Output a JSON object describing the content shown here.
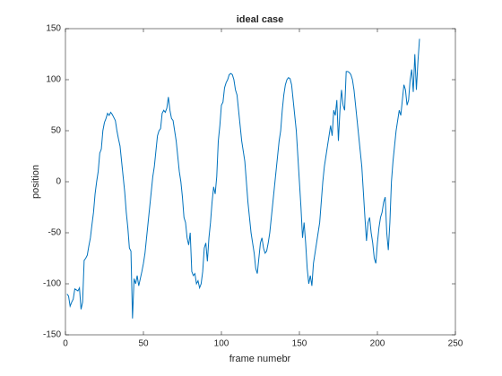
{
  "chart_data": {
    "type": "line",
    "title": "ideal case",
    "xlabel": "frame numebr",
    "ylabel": "position",
    "x": [
      1,
      2,
      3,
      4,
      5,
      6,
      7,
      8,
      9,
      10,
      11,
      12,
      13,
      14,
      15,
      16,
      17,
      18,
      19,
      20,
      21,
      22,
      23,
      24,
      25,
      26,
      27,
      28,
      29,
      30,
      31,
      32,
      33,
      34,
      35,
      36,
      37,
      38,
      39,
      40,
      41,
      42,
      43,
      44,
      45,
      46,
      47,
      48,
      49,
      50,
      51,
      52,
      53,
      54,
      55,
      56,
      57,
      58,
      59,
      60,
      61,
      62,
      63,
      64,
      65,
      66,
      67,
      68,
      69,
      70,
      71,
      72,
      73,
      74,
      75,
      76,
      77,
      78,
      79,
      80,
      81,
      82,
      83,
      84,
      85,
      86,
      87,
      88,
      89,
      90,
      91,
      92,
      93,
      94,
      95,
      96,
      97,
      98,
      99,
      100,
      101,
      102,
      103,
      104,
      105,
      106,
      107,
      108,
      109,
      110,
      111,
      112,
      113,
      114,
      115,
      116,
      117,
      118,
      119,
      120,
      121,
      122,
      123,
      124,
      125,
      126,
      127,
      128,
      129,
      130,
      131,
      132,
      133,
      134,
      135,
      136,
      137,
      138,
      139,
      140,
      141,
      142,
      143,
      144,
      145,
      146,
      147,
      148,
      149,
      150,
      151,
      152,
      153,
      154,
      155,
      156,
      157,
      158,
      159,
      160,
      161,
      162,
      163,
      164,
      165,
      166,
      167,
      168,
      169,
      170,
      171,
      172,
      173,
      174,
      175,
      176,
      177,
      178,
      179,
      180,
      181,
      182,
      183,
      184,
      185,
      186,
      187,
      188,
      189,
      190,
      191,
      192,
      193,
      194,
      195,
      196,
      197,
      198,
      199,
      200,
      201,
      202,
      203,
      204,
      205,
      206,
      207,
      208,
      209,
      210,
      211,
      212,
      213,
      214,
      215,
      216,
      217,
      218,
      219,
      220,
      221,
      222,
      223,
      224,
      225,
      226,
      227
    ],
    "series": [
      {
        "color": "#0072bd",
        "values": [
          -110,
          -112,
          -122,
          -118,
          -115,
          -105,
          -106,
          -107,
          -104,
          -125,
          -118,
          -77,
          -75,
          -72,
          -63,
          -55,
          -42,
          -30,
          -12,
          0,
          10,
          28,
          32,
          50,
          58,
          62,
          67,
          65,
          68,
          66,
          63,
          60,
          50,
          42,
          35,
          20,
          5,
          -10,
          -30,
          -45,
          -65,
          -68,
          -134,
          -95,
          -100,
          -92,
          -102,
          -95,
          -88,
          -80,
          -70,
          -55,
          -40,
          -25,
          -10,
          5,
          15,
          30,
          45,
          50,
          52,
          67,
          70,
          68,
          72,
          83,
          70,
          62,
          60,
          50,
          40,
          25,
          10,
          0,
          -15,
          -35,
          -40,
          -55,
          -62,
          -50,
          -88,
          -92,
          -90,
          -100,
          -97,
          -104,
          -100,
          -88,
          -65,
          -60,
          -78,
          -55,
          -40,
          -20,
          -5,
          -12,
          5,
          40,
          55,
          75,
          78,
          92,
          97,
          100,
          105,
          106,
          105,
          100,
          90,
          85,
          70,
          55,
          40,
          30,
          20,
          0,
          -20,
          -35,
          -50,
          -60,
          -70,
          -85,
          -90,
          -75,
          -60,
          -55,
          -65,
          -70,
          -68,
          -60,
          -50,
          -35,
          -20,
          -5,
          10,
          25,
          40,
          50,
          70,
          85,
          95,
          100,
          102,
          101,
          95,
          80,
          65,
          50,
          25,
          0,
          -25,
          -55,
          -40,
          -60,
          -85,
          -100,
          -92,
          -102,
          -80,
          -70,
          -60,
          -50,
          -40,
          -20,
          0,
          15,
          25,
          35,
          45,
          55,
          45,
          70,
          65,
          80,
          40,
          70,
          90,
          75,
          70,
          108,
          108,
          107,
          105,
          100,
          90,
          75,
          60,
          45,
          30,
          15,
          -10,
          -35,
          -58,
          -40,
          -35,
          -50,
          -60,
          -75,
          -80,
          -60,
          -45,
          -35,
          -30,
          -20,
          -15,
          -50,
          -67,
          -40,
          0,
          20,
          35,
          50,
          60,
          70,
          65,
          80,
          95,
          90,
          75,
          80,
          100,
          110,
          88,
          125,
          90,
          118,
          140
        ]
      }
    ],
    "xlim": [
      0,
      250
    ],
    "xticks": [
      0,
      50,
      100,
      150,
      200,
      250
    ],
    "ylim": [
      -150,
      150
    ],
    "yticks": [
      -150,
      -100,
      -50,
      0,
      50,
      100,
      150
    ]
  }
}
